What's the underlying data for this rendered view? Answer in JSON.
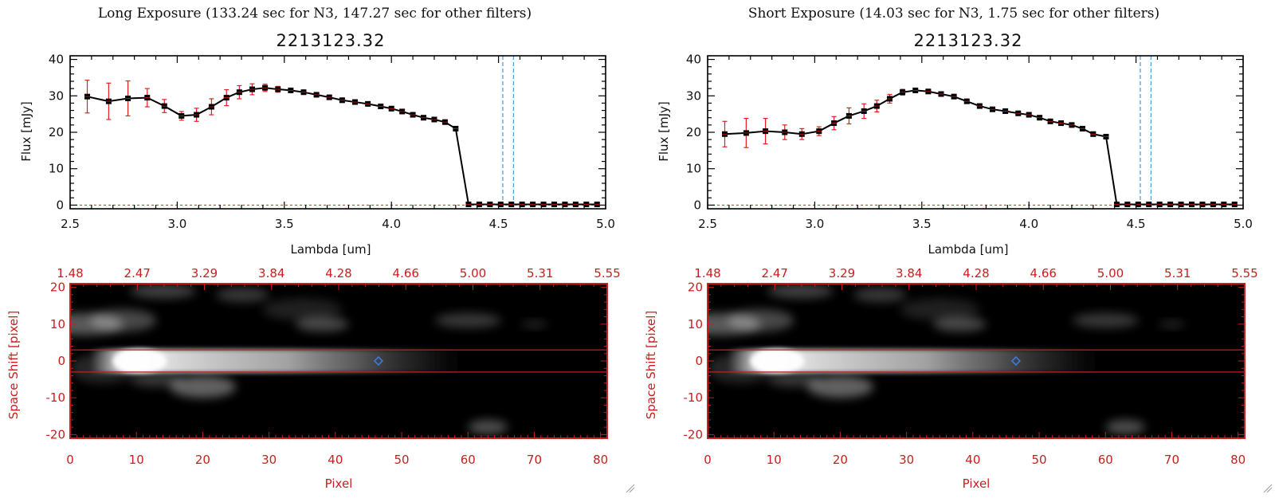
{
  "panels": [
    {
      "exposure_title": "Long Exposure (133.24 sec for N3, 147.27 sec for other filters)",
      "object_title": "2213123.32",
      "chart_data": {
        "type": "line",
        "xlabel": "Lambda [um]",
        "ylabel": "Flux [mJy]",
        "xlim": [
          2.5,
          5.0
        ],
        "ylim": [
          -1,
          41
        ],
        "xticks": [
          "2.5",
          "3.0",
          "3.5",
          "4.0",
          "4.5",
          "5.0"
        ],
        "yticks": [
          "0",
          "10",
          "20",
          "30",
          "40"
        ],
        "x": [
          2.58,
          2.68,
          2.77,
          2.86,
          2.94,
          3.02,
          3.09,
          3.16,
          3.23,
          3.29,
          3.35,
          3.41,
          3.47,
          3.53,
          3.59,
          3.65,
          3.71,
          3.77,
          3.83,
          3.89,
          3.95,
          4.0,
          4.05,
          4.1,
          4.15,
          4.2,
          4.25,
          4.3,
          4.36,
          4.41,
          4.46,
          4.51,
          4.56,
          4.61,
          4.66,
          4.71,
          4.76,
          4.81,
          4.86,
          4.91,
          4.96
        ],
        "y": [
          29.8,
          28.5,
          29.3,
          29.5,
          27.2,
          24.5,
          24.8,
          27.0,
          29.5,
          31.0,
          31.8,
          32.2,
          31.8,
          31.5,
          31.0,
          30.3,
          29.6,
          28.8,
          28.3,
          27.8,
          27.1,
          26.5,
          25.7,
          24.8,
          24.0,
          23.5,
          22.8,
          21.0,
          0.2,
          0.2,
          0.2,
          0.2,
          0.2,
          0.2,
          0.2,
          0.2,
          0.2,
          0.2,
          0.2,
          0.2,
          0.2
        ],
        "yerr": [
          4.5,
          5.0,
          4.8,
          2.5,
          1.8,
          1.2,
          1.8,
          2.2,
          2.2,
          1.8,
          1.5,
          1.0,
          0.8,
          0.6,
          0.6,
          0.6,
          0.6,
          0.6,
          0.6,
          0.6,
          0.6,
          0.6,
          0.6,
          0.6,
          0.6,
          0.6,
          0.6,
          0.6,
          0.0,
          0.0,
          0.0,
          0.0,
          0.0,
          0.0,
          0.0,
          0.0,
          0.0,
          0.0,
          0.0,
          0.0,
          0.0
        ],
        "vlines": [
          4.52,
          4.57
        ],
        "colors": {
          "line": "#000000",
          "marker": "#000000",
          "errorbar": "#e02020",
          "vline": "#4da3e6",
          "zero_line": "#e02020"
        }
      },
      "image_data": {
        "type": "heatmap",
        "xlabel": "Pixel",
        "ylabel": "Space Shift [pixel]",
        "xlim": [
          0,
          81
        ],
        "ylim": [
          -21,
          21
        ],
        "xticks": [
          "0",
          "10",
          "20",
          "30",
          "40",
          "50",
          "60",
          "70",
          "80"
        ],
        "yticks": [
          "20",
          "10",
          "0",
          "-10",
          "-20"
        ],
        "top_ticks": [
          "1.48",
          "2.47",
          "3.29",
          "3.84",
          "4.28",
          "4.66",
          "5.00",
          "5.31",
          "5.55"
        ],
        "aperture": [
          -3,
          3
        ],
        "marker_pixel": 46.5,
        "colors": {
          "axis": "#c81e1e",
          "aperture": "#c81e1e",
          "marker": "#3c78dc"
        }
      }
    },
    {
      "exposure_title": "Short Exposure (14.03 sec for N3, 1.75 sec for other filters)",
      "object_title": "2213123.32",
      "chart_data": {
        "type": "line",
        "xlabel": "Lambda [um]",
        "ylabel": "Flux [mJy]",
        "xlim": [
          2.5,
          5.0
        ],
        "ylim": [
          -1,
          41
        ],
        "xticks": [
          "2.5",
          "3.0",
          "3.5",
          "4.0",
          "4.5",
          "5.0"
        ],
        "yticks": [
          "0",
          "10",
          "20",
          "30",
          "40"
        ],
        "x": [
          2.58,
          2.68,
          2.77,
          2.86,
          2.94,
          3.02,
          3.09,
          3.16,
          3.23,
          3.29,
          3.35,
          3.41,
          3.47,
          3.53,
          3.59,
          3.65,
          3.71,
          3.77,
          3.83,
          3.89,
          3.95,
          4.0,
          4.05,
          4.1,
          4.15,
          4.2,
          4.25,
          4.3,
          4.36,
          4.41,
          4.46,
          4.51,
          4.56,
          4.61,
          4.66,
          4.71,
          4.76,
          4.81,
          4.86,
          4.91,
          4.96
        ],
        "y": [
          19.5,
          19.8,
          20.3,
          20.0,
          19.5,
          20.3,
          22.5,
          24.5,
          25.8,
          27.2,
          29.2,
          31.0,
          31.5,
          31.2,
          30.5,
          29.8,
          28.5,
          27.2,
          26.3,
          25.8,
          25.2,
          24.8,
          24.0,
          23.0,
          22.5,
          22.0,
          21.0,
          19.5,
          18.8,
          0.2,
          0.2,
          0.2,
          0.2,
          0.2,
          0.2,
          0.2,
          0.2,
          0.2,
          0.2,
          0.2,
          0.2
        ],
        "yerr": [
          3.5,
          4.0,
          3.5,
          2.0,
          1.5,
          1.2,
          1.8,
          2.2,
          2.0,
          1.6,
          1.2,
          0.8,
          0.6,
          0.6,
          0.6,
          0.6,
          0.6,
          0.6,
          0.6,
          0.6,
          0.6,
          0.6,
          0.6,
          0.6,
          0.6,
          0.6,
          0.6,
          0.6,
          0.6,
          0.0,
          0.0,
          0.0,
          0.0,
          0.0,
          0.0,
          0.0,
          0.0,
          0.0,
          0.0,
          0.0,
          0.0
        ],
        "vlines": [
          4.52,
          4.57
        ],
        "colors": {
          "line": "#000000",
          "marker": "#000000",
          "errorbar": "#e02020",
          "vline": "#4da3e6",
          "zero_line": "#e02020"
        }
      },
      "image_data": {
        "type": "heatmap",
        "xlabel": "Pixel",
        "ylabel": "Space Shift [pixel]",
        "xlim": [
          0,
          81
        ],
        "ylim": [
          -21,
          21
        ],
        "xticks": [
          "0",
          "10",
          "20",
          "30",
          "40",
          "50",
          "60",
          "70",
          "80"
        ],
        "yticks": [
          "20",
          "10",
          "0",
          "-10",
          "-20"
        ],
        "top_ticks": [
          "1.48",
          "2.47",
          "3.29",
          "3.84",
          "4.28",
          "4.66",
          "5.00",
          "5.31",
          "5.55"
        ],
        "aperture": [
          -3,
          3
        ],
        "marker_pixel": 46.5,
        "colors": {
          "axis": "#c81e1e",
          "aperture": "#c81e1e",
          "marker": "#3c78dc"
        }
      }
    }
  ]
}
